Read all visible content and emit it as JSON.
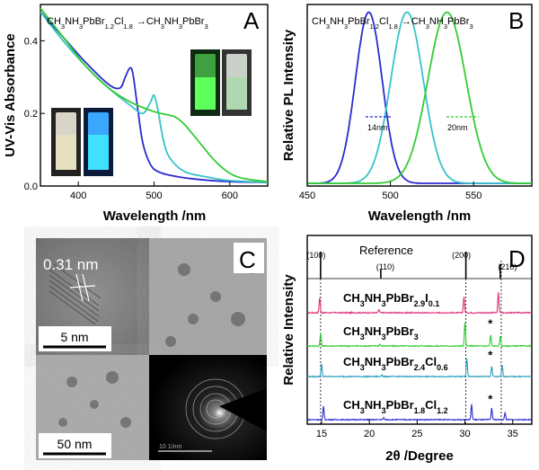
{
  "chart_data": [
    {
      "panel": "A",
      "type": "line",
      "annotation": "CH3NH3PbBr1.2Cl1.8 → CH3NH3PbBr3",
      "xlabel": "Wavelength /nm",
      "ylabel": "UV-Vis Absorbance",
      "xlim": [
        350,
        650
      ],
      "ylim": [
        0,
        0.5
      ],
      "xticks": [
        400,
        500,
        600
      ],
      "yticks": [
        0.0,
        0.2,
        0.4
      ],
      "grid": false,
      "series": [
        {
          "color": "#2b2bcf",
          "x": [
            350,
            380,
            410,
            440,
            455,
            462,
            468,
            472,
            478,
            485,
            495,
            505,
            520,
            550,
            600,
            650
          ],
          "y": [
            0.48,
            0.41,
            0.34,
            0.28,
            0.27,
            0.3,
            0.325,
            0.31,
            0.22,
            0.12,
            0.06,
            0.04,
            0.03,
            0.02,
            0.012,
            0.01
          ]
        },
        {
          "color": "#36c3c9",
          "x": [
            350,
            380,
            410,
            440,
            470,
            485,
            495,
            500,
            505,
            512,
            520,
            540,
            570,
            600,
            650
          ],
          "y": [
            0.48,
            0.4,
            0.33,
            0.27,
            0.22,
            0.2,
            0.23,
            0.25,
            0.21,
            0.13,
            0.08,
            0.04,
            0.025,
            0.015,
            0.01
          ]
        },
        {
          "color": "#33cc33",
          "x": [
            350,
            380,
            410,
            440,
            470,
            500,
            520,
            528,
            540,
            560,
            580,
            600,
            620,
            650
          ],
          "y": [
            0.49,
            0.41,
            0.33,
            0.27,
            0.23,
            0.205,
            0.195,
            0.19,
            0.17,
            0.12,
            0.07,
            0.035,
            0.02,
            0.012
          ]
        }
      ]
    },
    {
      "panel": "B",
      "type": "line",
      "annotation": "CH3NH3PbBr1.2Cl1.8 → CH3NH3PbBr3",
      "xlabel": "Wavelength /nm",
      "ylabel": "Relative PL Intensity",
      "xlim": [
        450,
        585
      ],
      "ylim": [
        0,
        1.05
      ],
      "xticks": [
        450,
        500,
        550
      ],
      "fwhm_labels": [
        "14nm",
        "20nm"
      ],
      "series": [
        {
          "color": "#2b2bcf",
          "peak": 487,
          "fwhm": 14,
          "amp": 1.0
        },
        {
          "color": "#36c3c9",
          "peak": 510,
          "fwhm": 17,
          "amp": 1.0
        },
        {
          "color": "#33cc33",
          "peak": 534,
          "fwhm": 20,
          "amp": 1.0
        }
      ]
    },
    {
      "panel": "C",
      "type": "table",
      "description_labels": [
        "0.31 nm",
        "5 nm",
        "50 nm",
        "10 1/nm"
      ]
    },
    {
      "panel": "D",
      "type": "line",
      "xlabel": "2θ /Degree",
      "ylabel": "Relative Intensity",
      "xlim": [
        13.5,
        37
      ],
      "xticks": [
        15,
        20,
        25,
        30,
        35
      ],
      "reference_label": "Reference",
      "reference_peaks": [
        {
          "label": "(100)",
          "x": 14.9,
          "h": 1.0
        },
        {
          "label": "(110)",
          "x": 21.2,
          "h": 0.35
        },
        {
          "label": "(200)",
          "x": 30.1,
          "h": 1.0
        },
        {
          "label": "(210)",
          "x": 33.7,
          "h": 0.55
        }
      ],
      "dashed_lines": [
        14.9,
        30.1,
        33.8
      ],
      "series": [
        {
          "name_parts": [
            [
              "CH",
              ""
            ],
            [
              "3",
              "sub"
            ],
            [
              "NH",
              ""
            ],
            [
              "3",
              "sub"
            ],
            [
              "PbBr",
              ""
            ],
            [
              "2.9",
              "sub"
            ],
            [
              "I",
              ""
            ],
            [
              "0.1",
              "sub"
            ]
          ],
          "color": "#e0307a",
          "peaks": [
            [
              14.8,
              0.55
            ],
            [
              21.0,
              0.12
            ],
            [
              29.9,
              0.6
            ],
            [
              33.5,
              0.75
            ]
          ],
          "star": false
        },
        {
          "name_parts": [
            [
              "CH",
              ""
            ],
            [
              "3",
              "sub"
            ],
            [
              "NH",
              ""
            ],
            [
              "3",
              "sub"
            ],
            [
              "PbBr",
              ""
            ],
            [
              "3",
              "sub"
            ]
          ],
          "color": "#33cc33",
          "peaks": [
            [
              14.9,
              0.5
            ],
            [
              21.1,
              0.08
            ],
            [
              30.0,
              0.85
            ],
            [
              33.7,
              0.35
            ],
            [
              32.7,
              0.4
            ]
          ],
          "star": true
        },
        {
          "name_parts": [
            [
              "CH",
              ""
            ],
            [
              "3",
              "sub"
            ],
            [
              "NH",
              ""
            ],
            [
              "3",
              "sub"
            ],
            [
              "PbBr",
              ""
            ],
            [
              "2.4",
              "sub"
            ],
            [
              "Cl",
              ""
            ],
            [
              "0.6",
              "sub"
            ]
          ],
          "color": "#2a9fbf",
          "peaks": [
            [
              15.0,
              0.5
            ],
            [
              21.3,
              0.08
            ],
            [
              30.2,
              0.7
            ],
            [
              33.9,
              0.45
            ],
            [
              32.8,
              0.4
            ]
          ],
          "star": true
        },
        {
          "name_parts": [
            [
              "CH",
              ""
            ],
            [
              "3",
              "sub"
            ],
            [
              "NH",
              ""
            ],
            [
              "3",
              "sub"
            ],
            [
              "PbBr",
              ""
            ],
            [
              "1.8",
              "sub"
            ],
            [
              "Cl",
              ""
            ],
            [
              "1.2",
              "sub"
            ]
          ],
          "color": "#2b2bcf",
          "peaks": [
            [
              15.2,
              0.6
            ],
            [
              21.5,
              0.08
            ],
            [
              30.7,
              0.65
            ],
            [
              34.2,
              0.3
            ],
            [
              32.8,
              0.5
            ]
          ],
          "star": true
        }
      ],
      "star_symbol": "*"
    }
  ],
  "panels": {
    "A": {
      "letter": "A"
    },
    "B": {
      "letter": "B"
    },
    "C": {
      "letter": "C",
      "lattice": "0.31 nm",
      "scale1": "5 nm",
      "scale2": "50 nm",
      "diffraction_scale": "10 1/nm"
    },
    "D": {
      "letter": "D"
    }
  },
  "arrow": "→",
  "formula_parts": {
    "start": [
      [
        "CH",
        ""
      ],
      [
        "3",
        "sub"
      ],
      [
        "NH",
        ""
      ],
      [
        "3",
        "sub"
      ],
      [
        "PbBr",
        ""
      ],
      [
        "1.2",
        "sub"
      ],
      [
        "Cl",
        ""
      ],
      [
        "1.8",
        "sub"
      ]
    ],
    "end": [
      [
        "CH",
        ""
      ],
      [
        "3",
        "sub"
      ],
      [
        "NH",
        ""
      ],
      [
        "3",
        "sub"
      ],
      [
        "PbBr",
        ""
      ],
      [
        "3",
        "sub"
      ]
    ]
  }
}
